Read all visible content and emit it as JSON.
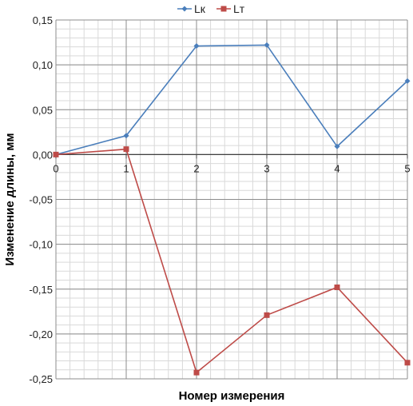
{
  "chart_data": {
    "type": "line",
    "xlabel": "Номер измерения",
    "ylabel": "Изменение длины, мм",
    "x": [
      0,
      1,
      2,
      3,
      4,
      5
    ],
    "xlim": [
      0,
      5
    ],
    "ylim": [
      -0.25,
      0.15
    ],
    "x_ticks": [
      "0",
      "1",
      "2",
      "3",
      "4",
      "5"
    ],
    "y_ticks": [
      "0,15",
      "0,10",
      "0,05",
      "0,00",
      "-0,05",
      "-0,10",
      "-0,15",
      "-0,20",
      "-0,25"
    ],
    "grid": true,
    "legend_position": "top",
    "series": [
      {
        "name": "Lк",
        "color": "#4a7ebb",
        "marker": "diamond",
        "values": [
          0.0,
          0.021,
          0.121,
          0.122,
          0.009,
          0.082
        ]
      },
      {
        "name": "Lт",
        "color": "#be4b48",
        "marker": "square",
        "values": [
          0.0,
          0.006,
          -0.243,
          -0.179,
          -0.148,
          -0.232
        ]
      }
    ]
  }
}
